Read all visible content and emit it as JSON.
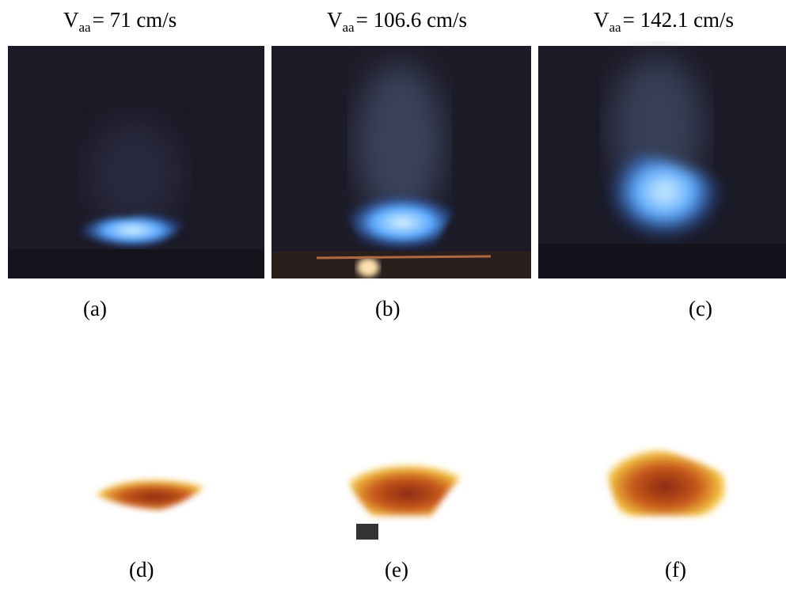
{
  "header": {
    "labels": [
      {
        "symbol": "V",
        "subscript": "aa",
        "rest": "= 71 cm/s"
      },
      {
        "symbol": "V",
        "subscript": "aa",
        "rest": "= 106.6 cm/s"
      },
      {
        "symbol": "V",
        "subscript": "aa",
        "rest": "= 142.1 cm/s"
      }
    ]
  },
  "panels": {
    "top": [
      "(a)",
      "(b)",
      "(c)"
    ],
    "bottom": [
      "(d)",
      "(e)",
      "(f)"
    ]
  }
}
